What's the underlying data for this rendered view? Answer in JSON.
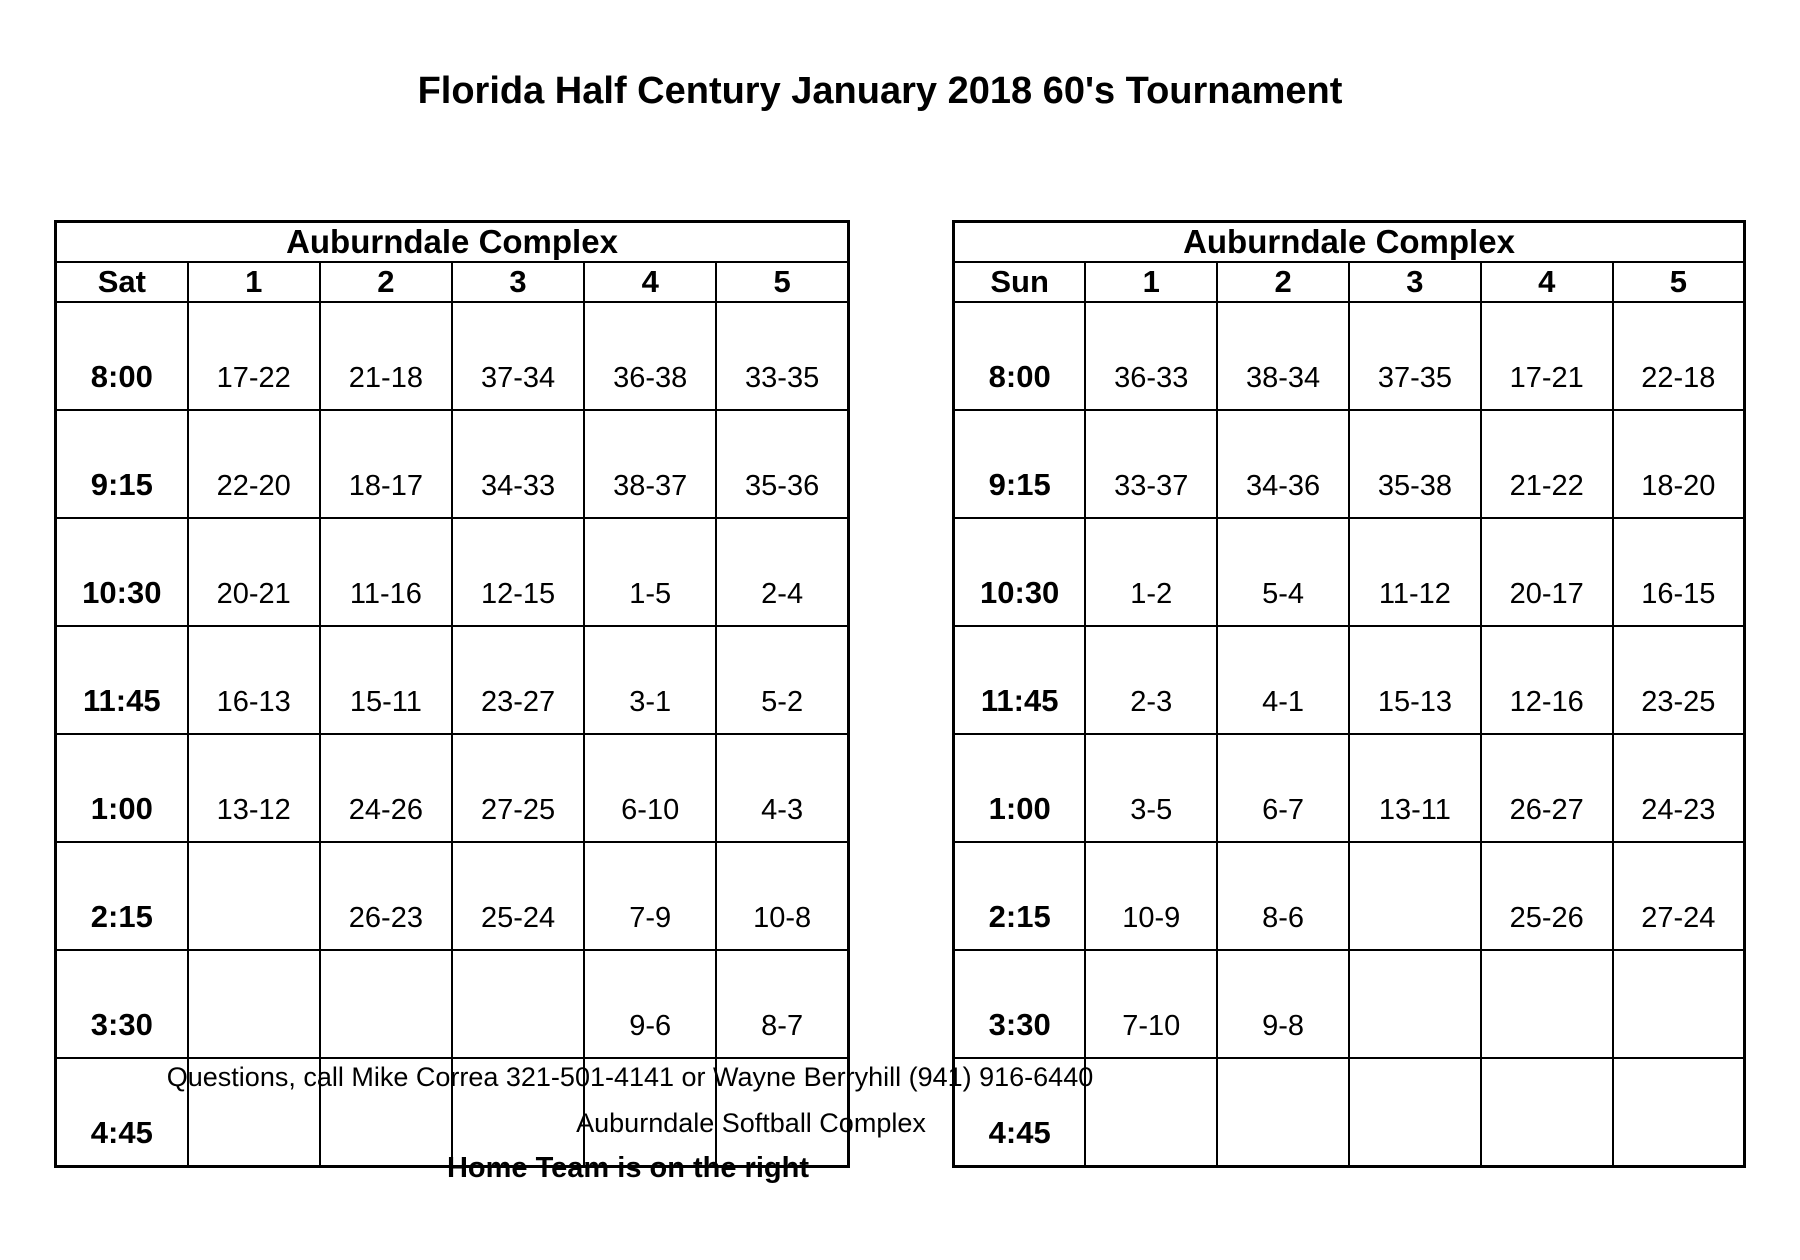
{
  "title": "Florida Half Century January 2018 60's Tournament",
  "tables": [
    {
      "complex": "Auburndale Complex",
      "day": "Sat",
      "fields": [
        "1",
        "2",
        "3",
        "4",
        "5"
      ],
      "rows": [
        {
          "time": "8:00",
          "cells": [
            "17-22",
            "21-18",
            "37-34",
            "36-38",
            "33-35"
          ]
        },
        {
          "time": "9:15",
          "cells": [
            "22-20",
            "18-17",
            "34-33",
            "38-37",
            "35-36"
          ]
        },
        {
          "time": "10:30",
          "cells": [
            "20-21",
            "11-16",
            "12-15",
            "1-5",
            "2-4"
          ]
        },
        {
          "time": "11:45",
          "cells": [
            "16-13",
            "15-11",
            "23-27",
            "3-1",
            "5-2"
          ]
        },
        {
          "time": "1:00",
          "cells": [
            "13-12",
            "24-26",
            "27-25",
            "6-10",
            "4-3"
          ]
        },
        {
          "time": "2:15",
          "cells": [
            "",
            "26-23",
            "25-24",
            "7-9",
            "10-8"
          ]
        },
        {
          "time": "3:30",
          "cells": [
            "",
            "",
            "",
            "9-6",
            "8-7"
          ]
        },
        {
          "time": "4:45",
          "cells": [
            "",
            "",
            "",
            "",
            ""
          ]
        }
      ]
    },
    {
      "complex": "Auburndale Complex",
      "day": "Sun",
      "fields": [
        "1",
        "2",
        "3",
        "4",
        "5"
      ],
      "rows": [
        {
          "time": "8:00",
          "cells": [
            "36-33",
            "38-34",
            "37-35",
            "17-21",
            "22-18"
          ]
        },
        {
          "time": "9:15",
          "cells": [
            "33-37",
            "34-36",
            "35-38",
            "21-22",
            "18-20"
          ]
        },
        {
          "time": "10:30",
          "cells": [
            "1-2",
            "5-4",
            "11-12",
            "20-17",
            "16-15"
          ]
        },
        {
          "time": "11:45",
          "cells": [
            "2-3",
            "4-1",
            "15-13",
            "12-16",
            "23-25"
          ]
        },
        {
          "time": "1:00",
          "cells": [
            "3-5",
            "6-7",
            "13-11",
            "26-27",
            "24-23"
          ]
        },
        {
          "time": "2:15",
          "cells": [
            "10-9",
            "8-6",
            "",
            "25-26",
            "27-24"
          ]
        },
        {
          "time": "3:30",
          "cells": [
            "7-10",
            "9-8",
            "",
            "",
            ""
          ]
        },
        {
          "time": "4:45",
          "cells": [
            "",
            "",
            "",
            "",
            ""
          ]
        }
      ]
    }
  ],
  "footer": {
    "questions": "Questions, call Mike Correa 321-501-4141 or Wayne Berryhill (941) 916-6440",
    "venue": "Auburndale Softball Complex",
    "home_team_note": "Home Team is on the right"
  }
}
